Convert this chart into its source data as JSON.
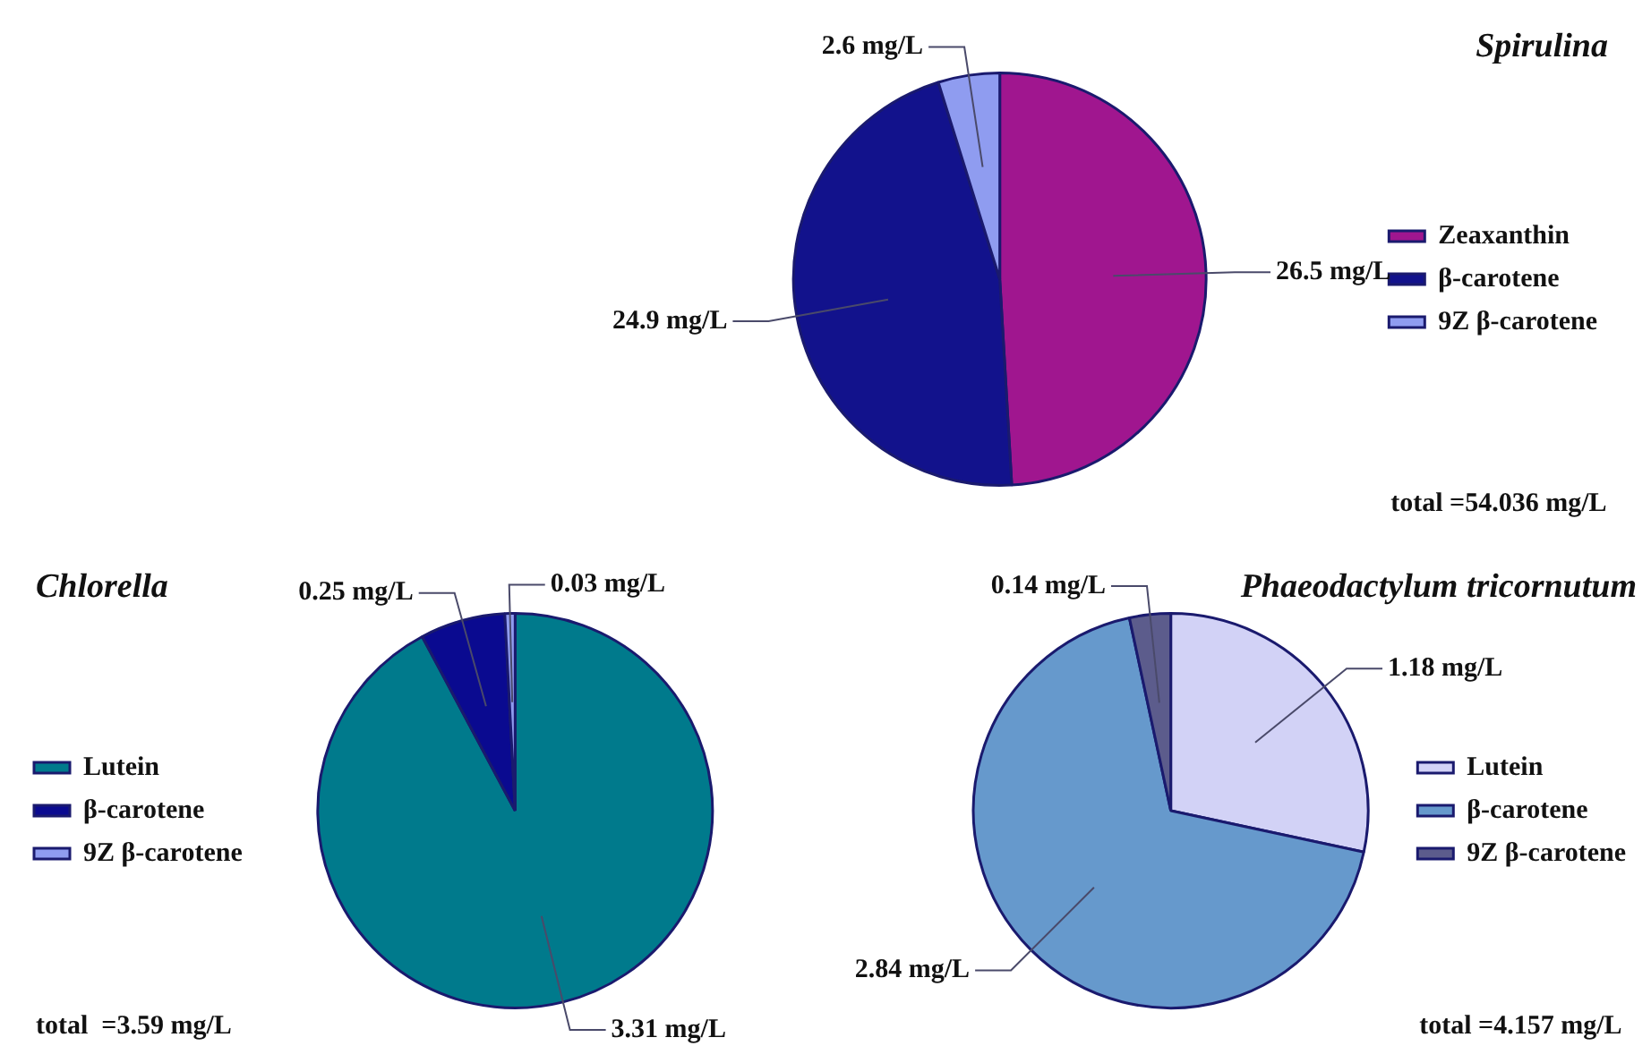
{
  "chart_data": [
    {
      "type": "pie",
      "legend_title": "Spirulina",
      "categories": [
        "Zeaxanthin",
        "β-carotene",
        "9Z β-carotene"
      ],
      "values": [
        26.5,
        24.9,
        2.6
      ],
      "colors": [
        "#a0168f",
        "#12128c",
        "#8f9cf0"
      ],
      "value_labels": [
        "26.5 mg/L",
        "24.9 mg/L",
        "2.6 mg/L"
      ],
      "legend": "right",
      "annotations": [
        "total =54.036 mg/L"
      ]
    },
    {
      "type": "pie",
      "legend_title": "Chlorella",
      "categories": [
        "Lutein",
        "β-carotene",
        "9Z β-carotene"
      ],
      "values": [
        3.31,
        0.25,
        0.03
      ],
      "colors": [
        "#007a8c",
        "#0a0a90",
        "#8f9cf0"
      ],
      "value_labels": [
        "3.31 mg/L",
        "0.25 mg/L",
        "0.03 mg/L"
      ],
      "legend": "left",
      "annotations": [
        "total  =3.59 mg/L"
      ]
    },
    {
      "type": "pie",
      "legend_title": "Phaeodactylum tricornutum",
      "categories": [
        "Lutein",
        "β-carotene",
        "9Z β-carotene"
      ],
      "values": [
        1.18,
        2.84,
        0.14
      ],
      "colors": [
        "#d2d2f6",
        "#6699cc",
        "#5c5c8c"
      ],
      "value_labels": [
        "1.18 mg/L",
        "2.84 mg/L",
        "0.14 mg/L"
      ],
      "legend": "right",
      "annotations": [
        "total =4.157 mg/L"
      ]
    }
  ]
}
